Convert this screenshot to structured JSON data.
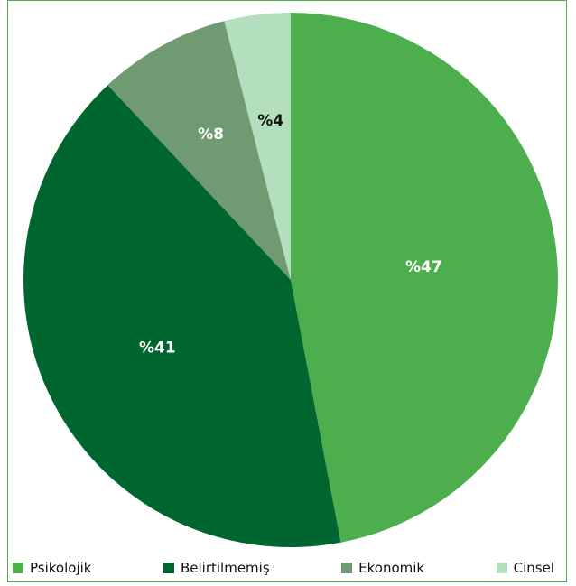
{
  "chart_data": {
    "type": "pie",
    "title": "",
    "categories": [
      "Psikolojik",
      "Belirtilmemiş",
      "Ekonomik",
      "Cinsel"
    ],
    "values": [
      47,
      41,
      8,
      4
    ],
    "data_labels": [
      "%47",
      "%41",
      "%8",
      "%4"
    ],
    "colors": [
      "#4cae4c",
      "#00662f",
      "#6f9a72",
      "#b3dfbe"
    ],
    "label_colors": [
      "#ffffff",
      "#ffffff",
      "#ffffff",
      "#111111"
    ],
    "start": "12 o'clock",
    "direction": "clockwise",
    "legend": {
      "position": "bottom",
      "entries": [
        "Psikolojik",
        "Belirtilmemiş",
        "Ekonomik",
        "Cinsel"
      ]
    }
  }
}
